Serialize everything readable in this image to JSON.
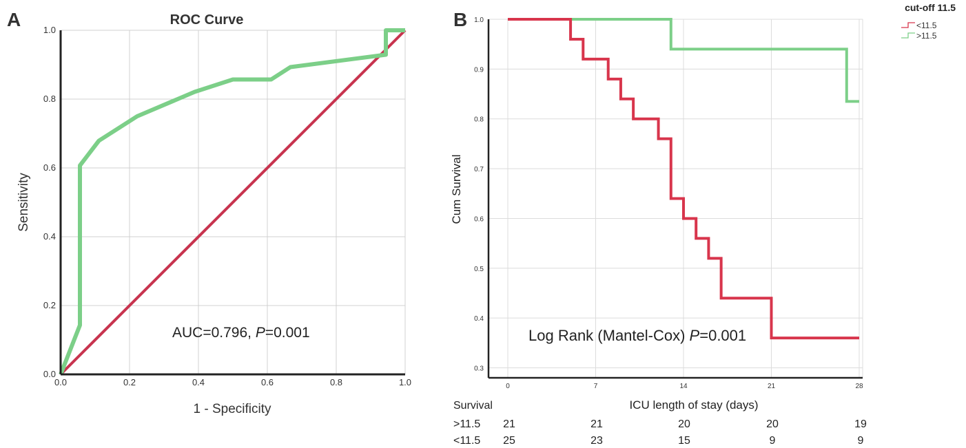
{
  "panels": {
    "a_letter": "A",
    "b_letter": "B"
  },
  "chart_data": [
    {
      "type": "line",
      "title": "ROC Curve",
      "xlabel": "1 - Specificity",
      "ylabel": "Sensitivity",
      "xlim": [
        0,
        1
      ],
      "ylim": [
        0,
        1
      ],
      "xticks": [
        "0.0",
        "0.2",
        "0.4",
        "0.6",
        "0.8",
        "1.0"
      ],
      "yticks": [
        "0.0",
        "0.2",
        "0.4",
        "0.6",
        "0.8",
        "1.0"
      ],
      "grid": true,
      "annotation": {
        "prefix": "AUC=0.796, ",
        "italic": "P",
        "suffix": "=0.001"
      },
      "colors": {
        "roc": "#7ccf88",
        "reference": "#c8344f"
      },
      "series": [
        {
          "x": [
            0.0,
            0.056,
            0.056,
            0.111,
            0.222,
            0.389,
            0.5,
            0.611,
            0.667,
            0.944,
            0.944,
            1.0
          ],
          "y": [
            0.0,
            0.143,
            0.607,
            0.679,
            0.75,
            0.821,
            0.857,
            0.857,
            0.893,
            0.929,
            1.0,
            1.0
          ]
        },
        {
          "x": [
            0,
            1
          ],
          "y": [
            0,
            1
          ]
        }
      ]
    },
    {
      "type": "line",
      "title": "",
      "xlabel": "ICU length of stay (days)",
      "ylabel": "Cum Survival",
      "xlim": [
        -2,
        28
      ],
      "ylim": [
        0.28,
        1.0
      ],
      "xticks": [
        "0",
        "7",
        "14",
        "21",
        "28"
      ],
      "yticks": [
        "0.3",
        "0.4",
        "0.5",
        "0.6",
        "0.7",
        "0.8",
        "0.9",
        "1.0"
      ],
      "grid": true,
      "annotation": {
        "prefix": "Log Rank (Mantel-Cox)  ",
        "italic": "P",
        "suffix": "=0.001"
      },
      "legend": {
        "title": "cut-off 11.5",
        "position": "top-right"
      },
      "series": [
        {
          "name": "<11.5",
          "color": "#d8354c",
          "times": [
            5,
            6,
            8,
            9,
            10,
            12,
            13,
            14,
            15,
            16,
            17,
            21
          ],
          "survival": [
            0.96,
            0.92,
            0.88,
            0.84,
            0.8,
            0.76,
            0.64,
            0.6,
            0.56,
            0.52,
            0.44,
            0.36
          ],
          "end": 28
        },
        {
          "name": ">11.5",
          "color": "#7ccf88",
          "times": [
            13,
            27
          ],
          "survival": [
            0.94,
            0.835
          ],
          "end": 28
        }
      ],
      "risk_table": {
        "header": "Survival",
        "rows": [
          {
            "label": ">11.5",
            "counts": [
              "21",
              "21",
              "20",
              "20",
              "19"
            ]
          },
          {
            "label": "<11.5",
            "counts": [
              "25",
              "23",
              "15",
              "9",
              "9"
            ]
          }
        ]
      }
    }
  ]
}
